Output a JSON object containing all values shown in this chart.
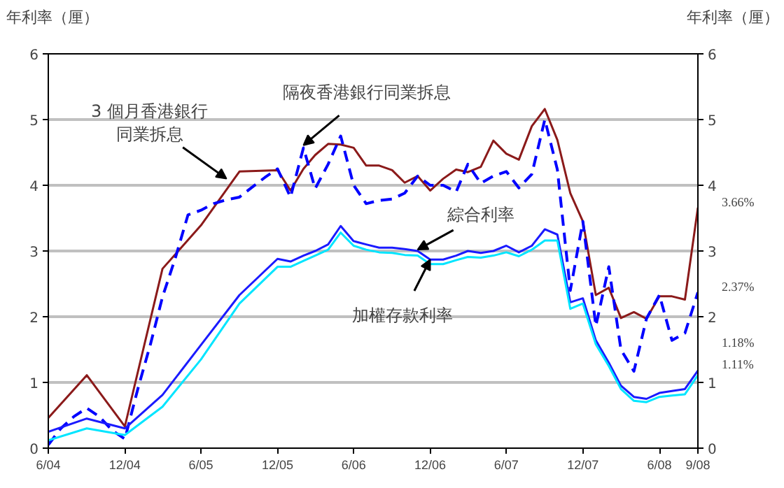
{
  "chart_data": {
    "type": "line",
    "ylabel": "年利率（厘）",
    "y2label": "年利率（厘）",
    "xlim": [
      "2004-06",
      "2008-09"
    ],
    "xticks": [
      {
        "value": "2004-06",
        "label": "6/04"
      },
      {
        "value": "2004-12",
        "label": "12/04"
      },
      {
        "value": "2005-06",
        "label": "6/05"
      },
      {
        "value": "2005-12",
        "label": "12/05"
      },
      {
        "value": "2006-06",
        "label": "6/06"
      },
      {
        "value": "2006-12",
        "label": "12/06"
      },
      {
        "value": "2007-06",
        "label": "6/07"
      },
      {
        "value": "2007-12",
        "label": "12/07"
      },
      {
        "value": "2008-06",
        "label": "6/08"
      },
      {
        "value": "2008-09",
        "label": "9/08"
      }
    ],
    "ylim": [
      0,
      6
    ],
    "yticks": [
      0,
      1,
      2,
      3,
      4,
      5,
      6
    ],
    "y2lim": [
      0,
      6
    ],
    "y2ticks": [
      0,
      1,
      2,
      3,
      4,
      5,
      6
    ],
    "grid": "y",
    "marker": "none",
    "series": [
      {
        "color": "#8b1a1a",
        "line_style": "solid",
        "x": [
          "2004-06",
          "2004-09",
          "2004-12",
          "2005-03",
          "2005-06",
          "2005-09",
          "2005-12",
          "2006-01",
          "2006-02",
          "2006-03",
          "2006-04",
          "2006-05",
          "2006-06",
          "2006-07",
          "2006-08",
          "2006-09",
          "2006-10",
          "2006-11",
          "2006-12",
          "2007-01",
          "2007-02",
          "2007-03",
          "2007-04",
          "2007-05",
          "2007-06",
          "2007-07",
          "2007-08",
          "2007-09",
          "2007-10",
          "2007-11",
          "2007-12",
          "2008-01",
          "2008-02",
          "2008-03",
          "2008-04",
          "2008-05",
          "2008-06",
          "2008-07",
          "2008-08",
          "2008-09"
        ],
        "values": [
          0.46,
          1.11,
          0.33,
          2.73,
          3.39,
          4.21,
          4.23,
          3.92,
          4.25,
          4.46,
          4.63,
          4.62,
          4.57,
          4.3,
          4.3,
          4.23,
          4.04,
          4.14,
          3.92,
          4.1,
          4.24,
          4.2,
          4.28,
          4.68,
          4.48,
          4.39,
          4.9,
          5.16,
          4.69,
          3.88,
          3.45,
          2.33,
          2.44,
          1.98,
          2.07,
          1.97,
          2.31,
          2.31,
          2.26,
          3.66
        ],
        "value_labels": [
          null,
          null,
          null,
          null,
          null,
          null,
          null,
          null,
          null,
          null,
          null,
          null,
          null,
          null,
          null,
          null,
          null,
          null,
          null,
          null,
          null,
          null,
          null,
          null,
          null,
          null,
          null,
          null,
          null,
          null,
          null,
          null,
          null,
          null,
          null,
          null,
          null,
          null,
          null,
          "3.66%"
        ]
      },
      {
        "color": "#0000ff",
        "line_style": "dashed",
        "x": [
          "2004-06",
          "2004-07",
          "2004-08",
          "2004-09",
          "2004-10",
          "2004-11",
          "2004-12",
          "2005-01",
          "2005-02",
          "2005-03",
          "2005-04",
          "2005-05",
          "2005-06",
          "2005-07",
          "2005-08",
          "2005-09",
          "2005-10",
          "2005-11",
          "2005-12",
          "2006-01",
          "2006-02",
          "2006-03",
          "2006-04",
          "2006-05",
          "2006-06",
          "2006-07",
          "2006-08",
          "2006-09",
          "2006-10",
          "2006-11",
          "2006-12",
          "2007-01",
          "2007-02",
          "2007-03",
          "2007-04",
          "2007-05",
          "2007-06",
          "2007-07",
          "2007-08",
          "2007-09",
          "2007-10",
          "2007-11",
          "2007-12",
          "2008-01",
          "2008-02",
          "2008-03",
          "2008-04",
          "2008-05",
          "2008-06",
          "2008-07",
          "2008-08",
          "2008-09"
        ],
        "values": [
          0.05,
          0.3,
          0.48,
          0.61,
          0.48,
          0.27,
          0.14,
          0.9,
          1.6,
          2.3,
          2.9,
          3.55,
          3.62,
          3.72,
          3.78,
          3.82,
          3.97,
          4.12,
          4.25,
          3.82,
          4.57,
          3.95,
          4.32,
          4.75,
          4.0,
          3.72,
          3.77,
          3.79,
          3.88,
          4.14,
          4.0,
          4.0,
          3.9,
          4.32,
          4.03,
          4.14,
          4.21,
          3.96,
          4.17,
          5.0,
          4.24,
          2.4,
          3.45,
          1.86,
          2.76,
          1.5,
          1.17,
          1.97,
          2.33,
          1.64,
          1.75,
          2.37
        ],
        "value_labels": [
          null,
          null,
          null,
          null,
          null,
          null,
          null,
          null,
          null,
          null,
          null,
          null,
          null,
          null,
          null,
          null,
          null,
          null,
          null,
          null,
          null,
          null,
          null,
          null,
          null,
          null,
          null,
          null,
          null,
          null,
          null,
          null,
          null,
          null,
          null,
          null,
          null,
          null,
          null,
          null,
          null,
          null,
          null,
          null,
          null,
          null,
          null,
          null,
          null,
          null,
          null,
          "2.37%"
        ]
      },
      {
        "color": "#1a1aff",
        "line_style": "solid",
        "x": [
          "2004-06",
          "2004-09",
          "2004-12",
          "2005-03",
          "2005-06",
          "2005-09",
          "2005-12",
          "2006-01",
          "2006-02",
          "2006-03",
          "2006-04",
          "2006-05",
          "2006-06",
          "2006-07",
          "2006-08",
          "2006-09",
          "2006-10",
          "2006-11",
          "2006-12",
          "2007-01",
          "2007-02",
          "2007-03",
          "2007-04",
          "2007-05",
          "2007-06",
          "2007-07",
          "2007-08",
          "2007-09",
          "2007-10",
          "2007-11",
          "2007-12",
          "2008-01",
          "2008-02",
          "2008-03",
          "2008-04",
          "2008-05",
          "2008-06",
          "2008-07",
          "2008-08",
          "2008-09"
        ],
        "values": [
          0.25,
          0.45,
          0.3,
          0.81,
          1.57,
          2.33,
          2.88,
          2.84,
          2.93,
          3.0,
          3.1,
          3.38,
          3.15,
          3.1,
          3.05,
          3.05,
          3.03,
          3.0,
          2.87,
          2.87,
          2.93,
          3.0,
          2.97,
          3.0,
          3.08,
          2.98,
          3.08,
          3.33,
          3.25,
          2.22,
          2.28,
          1.64,
          1.3,
          0.95,
          0.78,
          0.75,
          0.84,
          0.87,
          0.9,
          1.18
        ],
        "value_labels": [
          null,
          null,
          null,
          null,
          null,
          null,
          null,
          null,
          null,
          null,
          null,
          null,
          null,
          null,
          null,
          null,
          null,
          null,
          null,
          null,
          null,
          null,
          null,
          null,
          null,
          null,
          null,
          null,
          null,
          null,
          null,
          null,
          null,
          null,
          null,
          null,
          null,
          null,
          null,
          "1.18%"
        ]
      },
      {
        "color": "#00e5ff",
        "line_style": "solid",
        "x": [
          "2004-06",
          "2004-09",
          "2004-12",
          "2005-03",
          "2005-06",
          "2005-09",
          "2005-12",
          "2006-01",
          "2006-02",
          "2006-03",
          "2006-04",
          "2006-05",
          "2006-06",
          "2006-07",
          "2006-08",
          "2006-09",
          "2006-10",
          "2006-11",
          "2006-12",
          "2007-01",
          "2007-02",
          "2007-03",
          "2007-04",
          "2007-05",
          "2007-06",
          "2007-07",
          "2007-08",
          "2007-09",
          "2007-10",
          "2007-11",
          "2007-12",
          "2008-01",
          "2008-02",
          "2008-03",
          "2008-04",
          "2008-05",
          "2008-06",
          "2008-07",
          "2008-08",
          "2008-09"
        ],
        "values": [
          0.12,
          0.3,
          0.2,
          0.63,
          1.35,
          2.2,
          2.76,
          2.76,
          2.85,
          2.93,
          3.02,
          3.28,
          3.08,
          3.02,
          2.98,
          2.97,
          2.94,
          2.93,
          2.8,
          2.8,
          2.86,
          2.91,
          2.9,
          2.93,
          2.98,
          2.92,
          3.02,
          3.16,
          3.16,
          2.12,
          2.2,
          1.58,
          1.25,
          0.9,
          0.72,
          0.7,
          0.78,
          0.8,
          0.82,
          1.11
        ],
        "value_labels": [
          null,
          null,
          null,
          null,
          null,
          null,
          null,
          null,
          null,
          null,
          null,
          null,
          null,
          null,
          null,
          null,
          null,
          null,
          null,
          null,
          null,
          null,
          null,
          null,
          null,
          null,
          null,
          null,
          null,
          null,
          null,
          null,
          null,
          null,
          null,
          null,
          null,
          null,
          null,
          "1.11%"
        ]
      }
    ],
    "annotations": [
      {
        "text": "3 個月香港銀行同業拆息",
        "x": "2005-08",
        "y": 4.1
      },
      {
        "text": "隔夜香港銀行同業拆息",
        "x": "2006-02",
        "y": 4.61
      },
      {
        "text": "綜合利率",
        "x": "2006-11",
        "y": 3.02
      },
      {
        "text": "加權存款利率",
        "x": "2006-12",
        "y": 2.87
      }
    ]
  }
}
